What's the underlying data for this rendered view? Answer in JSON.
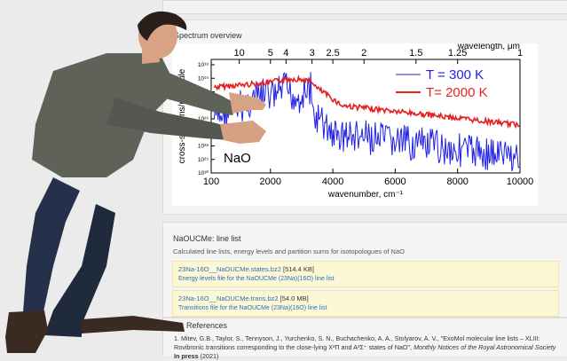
{
  "spectrum_panel": {
    "title": "Spectrum overview"
  },
  "chart_data": {
    "type": "line",
    "label": "NaO",
    "xlabel": "wavenumber, cm⁻¹",
    "top_xlabel": "wavelength, μm",
    "ylabel": "cross-sections/molecule",
    "xlim": [
      100,
      10000
    ],
    "x_ticks": [
      "100",
      "2000",
      "4000",
      "6000",
      "8000",
      "10000"
    ],
    "top_ticks": [
      "10",
      "5",
      "4",
      "3",
      "2.5",
      "2",
      "1.5",
      "1.25",
      "1"
    ],
    "y_ticks": [
      "10¹⁸",
      "10¹⁹",
      "10²⁰",
      "10²⁵",
      "10²⁶",
      "10²⁷",
      "10²⁸",
      "10²⁹",
      "10³⁰"
    ],
    "series": [
      {
        "name": "T = 300 K",
        "color": "#1f1fe6"
      },
      {
        "name": "T= 2000 K",
        "color": "#e61f1f"
      }
    ]
  },
  "linelist_panel": {
    "title": "NaOUCMe: line list",
    "description": "Calculated line lists, energy levels and partition sums for isotopologues of NaO",
    "files": [
      {
        "name": "23Na-16O__NaOUCMe.states.bz2",
        "size": "[514.4 KB]",
        "desc": "Energy levels file for the NaOUCMe (23Na)(16O) line list"
      },
      {
        "name": "23Na-16O__NaOUCMe.trans.bz2",
        "size": "[54.0 MB]",
        "desc": "Transitions file for the NaOUCMe (23Na)(16O) line list"
      }
    ]
  },
  "references": {
    "title": "References",
    "item_1_plain": "1. Mitev, G.B., Taylor, S., Tennyson, J., Yurchenko, S. N., Buchachenko, A. A., Stolyarov, A. V., \"ExoMol molecular line lists – XLIII: Rovibronic transitions corresponding to the close-lying X²Π and A²Σ⁺ states of NaO\",",
    "item_1_journal": "Monthly Notices of the Royal Astronomical Society",
    "item_1_status": "In press",
    "item_1_year": "(2021)"
  },
  "colors": {
    "link": "#2a6ebb",
    "highlight": "#fcf8d6",
    "shirt": "#5f6259",
    "jeans": "#1f2a3d"
  }
}
